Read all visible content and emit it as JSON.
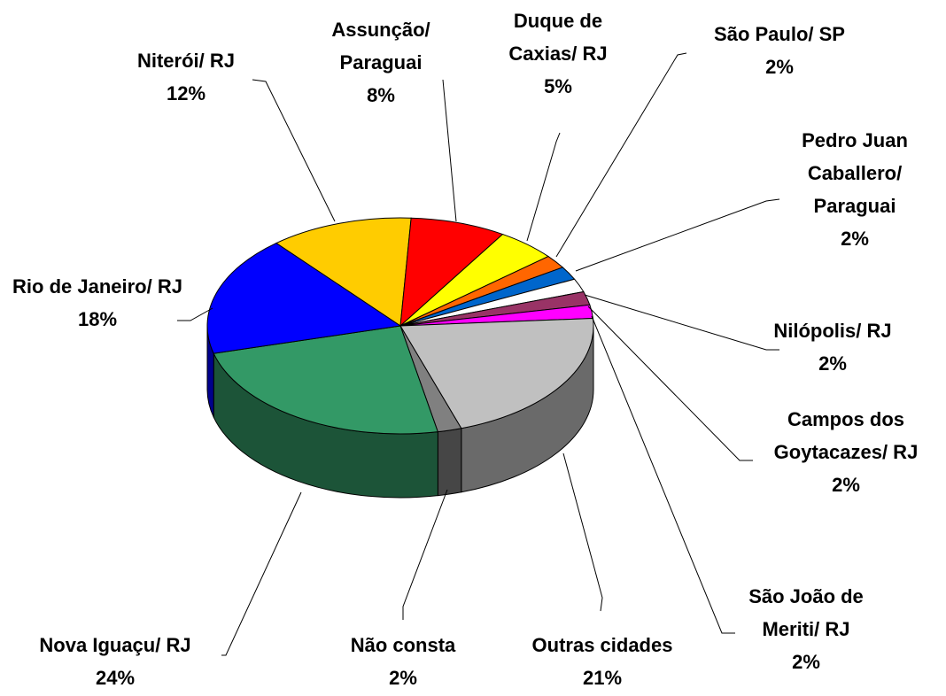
{
  "chart_data": {
    "type": "pie3d",
    "categories": [
      "Niterói/ RJ",
      "Assunção/ Paraguai",
      "Duque de Caxias/ RJ",
      "São Paulo/ SP",
      "Pedro Juan Caballero/ Paraguai",
      "Nilópolis/ RJ",
      "Campos dos Goytacazes/ RJ",
      "São João de Meriti/ RJ",
      "Outras cidades",
      "Não consta",
      "Nova Iguaçu/ RJ",
      "Rio de Janeiro/ RJ"
    ],
    "values": [
      12,
      8,
      5,
      2,
      2,
      2,
      2,
      2,
      21,
      2,
      24,
      18
    ],
    "value_labels": [
      "12%",
      "8%",
      "5%",
      "2%",
      "2%",
      "2%",
      "2%",
      "2%",
      "21%",
      "2%",
      "24%",
      "18%"
    ],
    "colors": [
      "#ffcc00",
      "#ff0000",
      "#ffff00",
      "#ff6600",
      "#0066cc",
      "#ffffff",
      "#993366",
      "#ff00ff",
      "#c0c0c0",
      "#808080",
      "#339966",
      "#0000ff"
    ]
  }
}
